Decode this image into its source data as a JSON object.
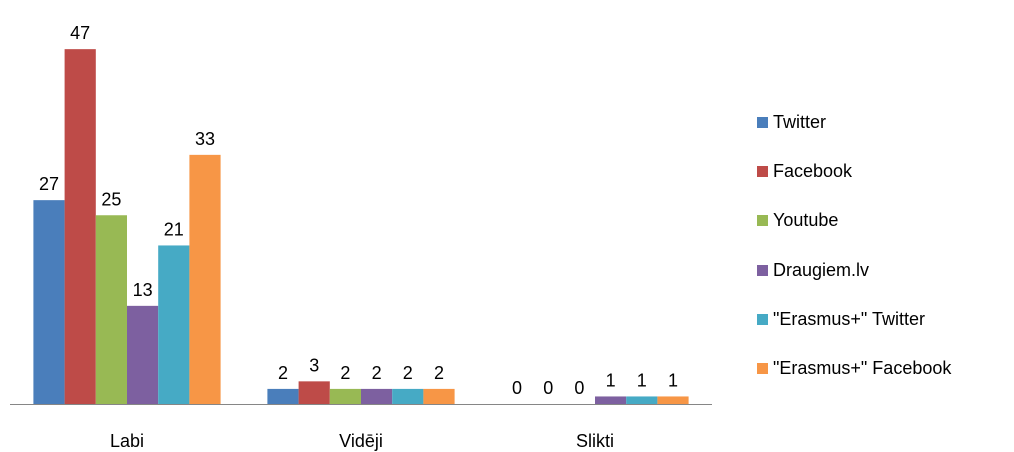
{
  "chart_data": {
    "type": "bar",
    "categories": [
      "Labi",
      "Vidēji",
      "Slikti"
    ],
    "series": [
      {
        "name": "Twitter",
        "values": [
          27,
          2,
          0
        ],
        "color": "#4a7ebb"
      },
      {
        "name": "Facebook",
        "values": [
          47,
          3,
          0
        ],
        "color": "#be4b48"
      },
      {
        "name": "Youtube",
        "values": [
          25,
          2,
          0
        ],
        "color": "#98b954"
      },
      {
        "name": "Draugiem.lv",
        "values": [
          13,
          2,
          1
        ],
        "color": "#7d60a0"
      },
      {
        "name": "\"Erasmus+\" Twitter",
        "values": [
          21,
          2,
          1
        ],
        "color": "#46aac5"
      },
      {
        "name": "\"Erasmus+\" Facebook",
        "values": [
          33,
          2,
          1
        ],
        "color": "#f79646"
      }
    ],
    "data_labels": true,
    "ylim": [
      0,
      50
    ],
    "legend_position": "right",
    "grid": false
  }
}
